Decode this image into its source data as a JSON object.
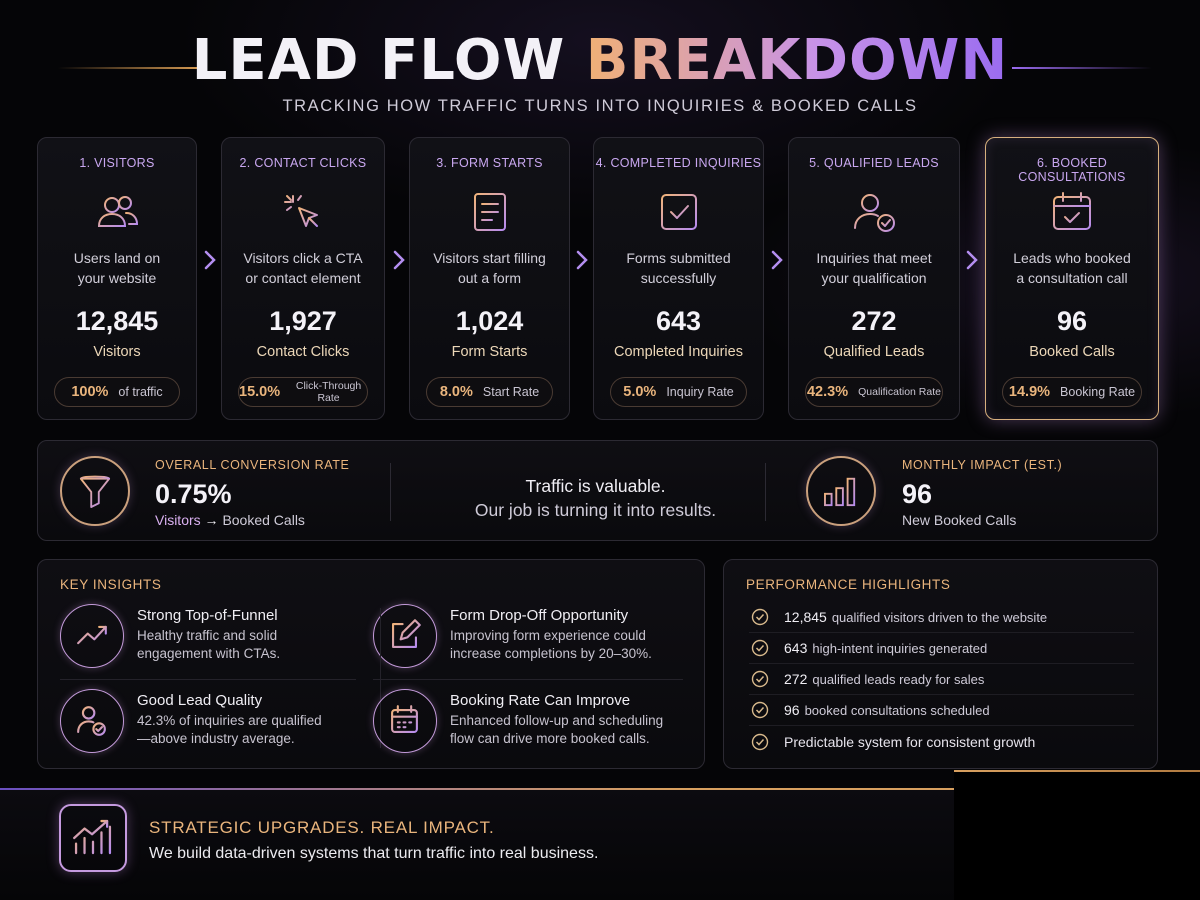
{
  "header": {
    "title_part1": "LEAD FLOW",
    "title_part2": "BREAKDOWN",
    "subtitle": "TRACKING HOW TRAFFIC TURNS INTO INQUIRIES & BOOKED CALLS"
  },
  "colors": {
    "accent_orange": "#eab57d",
    "accent_purple": "#c9a7f0",
    "background": "#050507"
  },
  "funnel": [
    {
      "stage": "1. VISITORS",
      "icon": "users-icon",
      "desc1": "Users land on",
      "desc2": "your website",
      "value": "12,845",
      "unit": "Visitors",
      "pill_value": "100%",
      "pill_label": "of traffic"
    },
    {
      "stage": "2. CONTACT CLICKS",
      "icon": "cursor-click-icon",
      "desc1": "Visitors click a CTA",
      "desc2": "or contact element",
      "value": "1,927",
      "unit": "Contact Clicks",
      "pill_value": "15.0%",
      "pill_label": "Click-Through Rate"
    },
    {
      "stage": "3. FORM STARTS",
      "icon": "form-icon",
      "desc1": "Visitors start filling",
      "desc2": "out a form",
      "value": "1,024",
      "unit": "Form Starts",
      "pill_value": "8.0%",
      "pill_label": "Start Rate"
    },
    {
      "stage": "4. COMPLETED INQUIRIES",
      "icon": "check-square-icon",
      "desc1": "Forms submitted",
      "desc2": "successfully",
      "value": "643",
      "unit": "Completed Inquiries",
      "pill_value": "5.0%",
      "pill_label": "Inquiry Rate"
    },
    {
      "stage": "5. QUALIFIED LEADS",
      "icon": "user-check-icon",
      "desc1": "Inquiries that meet",
      "desc2": "your qualification",
      "value": "272",
      "unit": "Qualified Leads",
      "pill_value": "42.3%",
      "pill_label": "Qualification Rate"
    },
    {
      "stage": "6. BOOKED CONSULTATIONS",
      "icon": "calendar-check-icon",
      "desc1": "Leads who booked",
      "desc2": "a consultation call",
      "value": "96",
      "unit": "Booked Calls",
      "pill_value": "14.9%",
      "pill_label": "Booking Rate"
    }
  ],
  "summary": {
    "conversion_label": "OVERALL CONVERSION RATE",
    "conversion_value": "0.75%",
    "conversion_from": "Visitors",
    "conversion_to": "Booked Calls",
    "quote1": "Traffic is valuable.",
    "quote2": "Our job is turning it into results.",
    "impact_label": "MONTHLY IMPACT (EST.)",
    "impact_value": "96",
    "impact_sub": "New Booked Calls"
  },
  "insights": {
    "title": "KEY INSIGHTS",
    "items": [
      {
        "icon": "trend-up-icon",
        "heading": "Strong Top-of-Funnel",
        "body1": "Healthy traffic and solid",
        "body2": "engagement with CTAs."
      },
      {
        "icon": "edit-icon",
        "heading": "Form Drop-Off Opportunity",
        "body1": "Improving form experience could",
        "body2": "increase completions by 20–30%."
      },
      {
        "icon": "user-check-icon",
        "heading": "Good Lead Quality",
        "body1": "42.3% of inquiries are qualified",
        "body2": "—above industry average."
      },
      {
        "icon": "calendar-icon",
        "heading": "Booking Rate Can Improve",
        "body1": "Enhanced follow-up and scheduling",
        "body2": "flow can drive more booked calls."
      }
    ]
  },
  "highlights": {
    "title": "PERFORMANCE HIGHLIGHTS",
    "items": [
      {
        "num": "12,845",
        "text": "qualified visitors driven to the website"
      },
      {
        "num": "643",
        "text": "high-intent inquiries generated"
      },
      {
        "num": "272",
        "text": "qualified leads ready for sales"
      },
      {
        "num": "96",
        "text": "booked consultations scheduled"
      },
      {
        "num": "",
        "text": "Predictable system for consistent growth"
      }
    ]
  },
  "footer": {
    "heading": "STRATEGIC UPGRADES. REAL IMPACT.",
    "body": "We build data-driven systems that turn traffic into real business."
  }
}
